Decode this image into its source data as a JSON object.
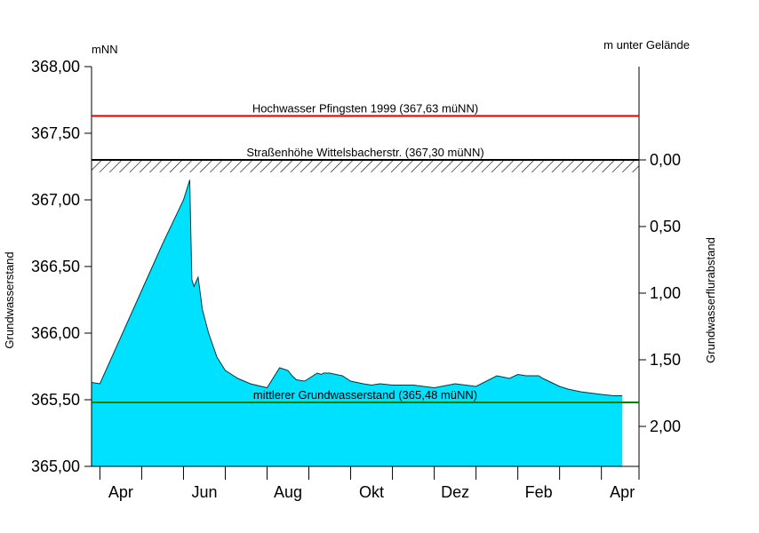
{
  "chart_data": {
    "type": "area",
    "y_unit_left": "mNN",
    "y_unit_right": "m unter Gelände",
    "ylabel_left": "Grundwasserstand",
    "ylabel_right": "Grundwasserflurabstand",
    "ylim": [
      365.0,
      368.0
    ],
    "left_ticks": [
      "365,00",
      "365,50",
      "366,00",
      "366,50",
      "367,00",
      "367,50",
      "368,00"
    ],
    "left_tick_values": [
      365.0,
      365.5,
      366.0,
      366.5,
      367.0,
      367.5,
      368.0
    ],
    "right_ticks": [
      "0,00",
      "0,50",
      "1,00",
      "1,50",
      "2,00"
    ],
    "right_tick_values": [
      0.0,
      0.5,
      1.0,
      1.5,
      2.0
    ],
    "ground_level": 367.3,
    "month_labels": [
      "Apr",
      "Jun",
      "Aug",
      "Okt",
      "Dez",
      "Feb",
      "Apr"
    ],
    "month_positions": [
      0.5,
      2.5,
      4.5,
      6.5,
      8.5,
      10.5,
      12.5
    ],
    "xlim": [
      -0.2,
      12.9
    ],
    "fill_color": "#00e0ff",
    "series": [
      {
        "x": [
          -0.2,
          0.0,
          0.5,
          1.0,
          1.5,
          2.0,
          2.15,
          2.17,
          2.2,
          2.25,
          2.35,
          2.4,
          2.45,
          2.6,
          2.8,
          3.0,
          3.3,
          3.6,
          4.0,
          4.3,
          4.5,
          4.6,
          4.7,
          4.9,
          5.2,
          5.3,
          5.35,
          5.5,
          5.8,
          6.0,
          6.3,
          6.5,
          6.7,
          7.0,
          7.5,
          8.0,
          8.5,
          9.0,
          9.5,
          9.8,
          10.0,
          10.2,
          10.5,
          10.6,
          10.8,
          11.0,
          11.2,
          11.5,
          12.0,
          12.3,
          12.5
        ],
        "y": [
          365.63,
          365.62,
          365.97,
          366.32,
          366.67,
          367.0,
          367.15,
          366.85,
          366.4,
          366.35,
          366.42,
          366.3,
          366.18,
          366.0,
          365.82,
          365.72,
          365.66,
          365.62,
          365.59,
          365.74,
          365.72,
          365.68,
          365.65,
          365.64,
          365.7,
          365.69,
          365.7,
          365.7,
          365.68,
          365.64,
          365.62,
          365.61,
          365.62,
          365.61,
          365.61,
          365.59,
          365.62,
          365.6,
          365.68,
          365.66,
          365.69,
          365.68,
          365.68,
          365.66,
          365.63,
          365.6,
          365.58,
          365.56,
          365.54,
          365.53,
          365.53
        ]
      }
    ],
    "reference_lines": [
      {
        "label": "Hochwasser Pfingsten 1999 (367,63 müNN)",
        "value": 367.63,
        "color": "#e00000"
      },
      {
        "label": "Straßenhöhe Wittelsbacherstr. (367,30 müNN)",
        "value": 367.3,
        "color": "#000000"
      },
      {
        "label": "mittlerer Grundwasserstand (365,48 müNN)",
        "value": 365.48,
        "color": "#008000"
      }
    ]
  }
}
